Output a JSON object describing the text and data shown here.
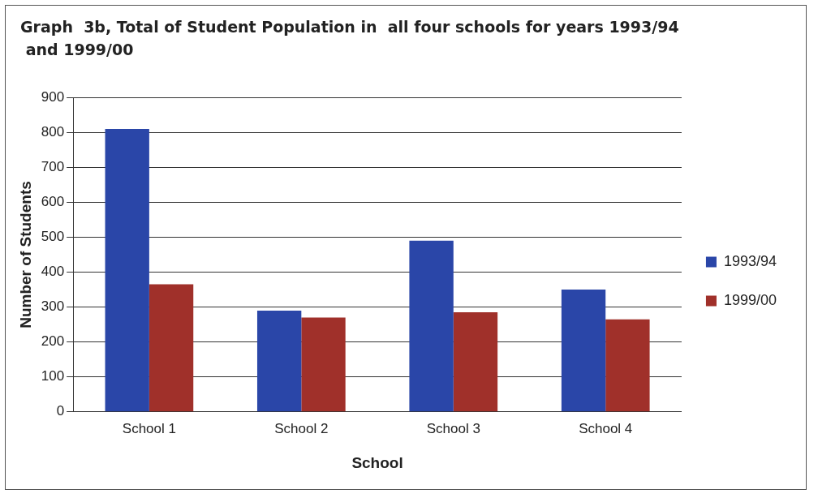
{
  "chart_data": {
    "type": "bar",
    "title": "Graph  3b, Total of Student Population in  all four schools for years 1993/94\n and 1999/00",
    "xlabel": "School",
    "ylabel": "Number of Students",
    "categories": [
      "School 1",
      "School 2",
      "School 3",
      "School 4"
    ],
    "series": [
      {
        "name": "1993/94",
        "color": "#2a46a8",
        "values": [
          810,
          290,
          490,
          350
        ]
      },
      {
        "name": "1999/00",
        "color": "#a0302a",
        "values": [
          365,
          270,
          285,
          265
        ]
      }
    ],
    "ylim": [
      0,
      900
    ],
    "yticks": [
      0,
      100,
      200,
      300,
      400,
      500,
      600,
      700,
      800,
      900
    ],
    "grid": "y",
    "legend": "right"
  }
}
